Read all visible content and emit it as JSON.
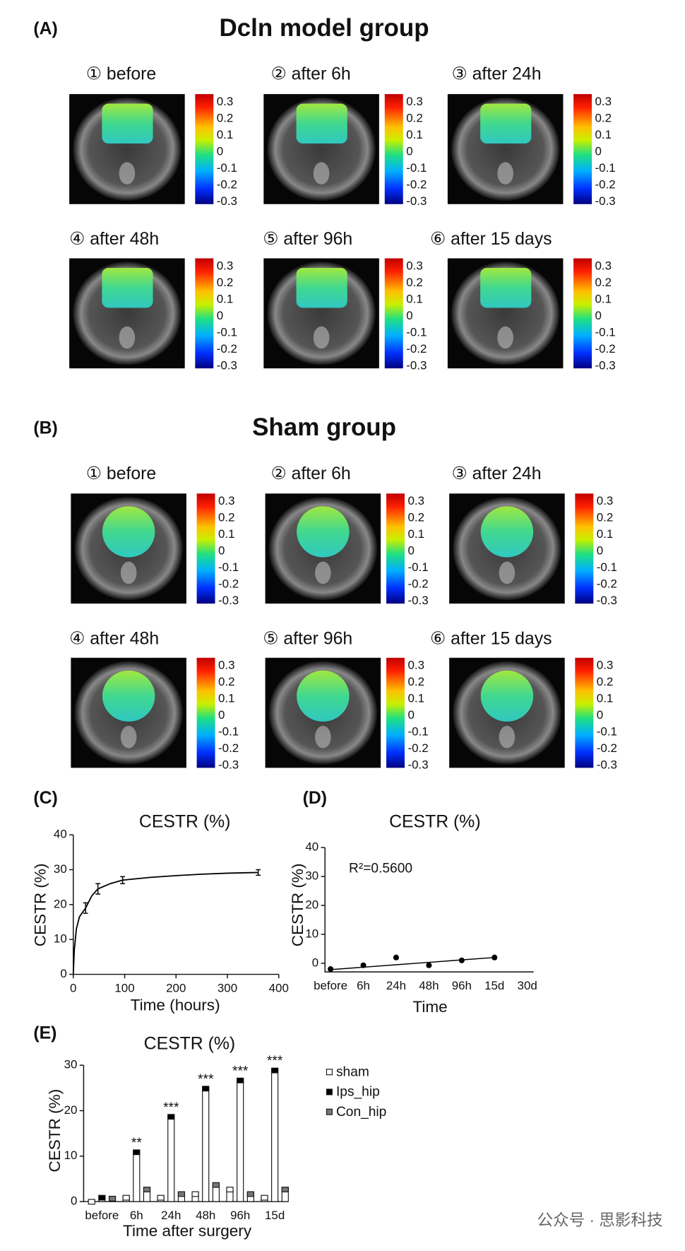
{
  "panels": [
    {
      "label": "(A)",
      "title": "Dcln model group",
      "colorbar_ticks": [
        0.3,
        0.2,
        0.1,
        0,
        -0.1,
        -0.2,
        -0.3
      ],
      "images": [
        "① before",
        "② after 6h",
        "③ after 24h",
        "④ after 48h",
        "⑤ after 96h",
        "⑥ after 15 days"
      ]
    },
    {
      "label": "(B)",
      "title": "Sham group",
      "colorbar_ticks": [
        0.3,
        0.2,
        0.1,
        0,
        -0.1,
        -0.2,
        -0.3
      ],
      "images": [
        "① before",
        "② after 6h",
        "③ after 24h",
        "④ after 48h",
        "⑤ after 96h",
        "⑥ after 15 days"
      ]
    }
  ],
  "chart_data": [
    {
      "label": "(C)",
      "type": "line",
      "title": "CESTR (%)",
      "x_label": "Time (hours)",
      "y_label": "CESTR (%)",
      "xlim": [
        0,
        400
      ],
      "xticks": [
        0,
        100,
        200,
        300,
        400
      ],
      "ylim": [
        0,
        40
      ],
      "yticks": [
        0,
        10,
        20,
        30,
        40
      ],
      "series": [
        {
          "color": "#000000",
          "x": [
            0,
            2,
            6,
            12,
            24,
            36,
            48,
            72,
            96,
            150,
            200,
            250,
            300,
            360
          ],
          "values": [
            0,
            7,
            13,
            16.5,
            19,
            22.5,
            24.5,
            26,
            27,
            27.8,
            28.3,
            28.7,
            29,
            29.2
          ]
        },
        {
          "color": "#000000",
          "x": [
            24,
            48,
            96,
            360
          ],
          "values": [
            19,
            24.5,
            27,
            29.2
          ],
          "errors": [
            1.5,
            1.5,
            1,
            0.8
          ]
        }
      ]
    },
    {
      "label": "(D)",
      "type": "scatter",
      "title": "CESTR (%)",
      "x_label": "Time",
      "y_label": "CESTR (%)",
      "annotation": "R²=0.5600",
      "categories": [
        "before",
        "6h",
        "24h",
        "48h",
        "96h",
        "15d",
        "30d"
      ],
      "ylim": [
        -3,
        40
      ],
      "yticks": [
        0,
        10,
        20,
        30,
        40
      ],
      "series": [
        {
          "color": "#000000",
          "values": [
            -2,
            -0.7,
            2,
            -0.7,
            1,
            2,
            null
          ]
        },
        {
          "type": "line",
          "color": "#000000",
          "values": [
            -2.2,
            -1.36,
            -0.52,
            0.32,
            1.16,
            2.0,
            null
          ]
        }
      ]
    },
    {
      "label": "(E)",
      "type": "bar",
      "title": "CESTR (%)",
      "x_label": "Time after surgery",
      "y_label": "CESTR (%)",
      "categories": [
        "before",
        "6h",
        "24h",
        "48h",
        "96h",
        "15d"
      ],
      "ylim": [
        0,
        30
      ],
      "yticks": [
        0,
        10,
        20,
        30
      ],
      "series": [
        {
          "name": "sham",
          "color": "#ffffff",
          "values": [
            0.3,
            1.2,
            1.2,
            2,
            3,
            1.2
          ]
        },
        {
          "name": "Ips_hip",
          "color": "#000000",
          "values": [
            1.2,
            11.2,
            19,
            25.2,
            27,
            29.2
          ],
          "significance": [
            null,
            "**",
            "***",
            "***",
            "***",
            "***"
          ]
        },
        {
          "name": "Con_hip",
          "color": "#777777",
          "values": [
            1,
            3,
            2,
            4,
            2,
            3
          ]
        }
      ]
    }
  ],
  "watermark": "公众号 · 思影科技"
}
